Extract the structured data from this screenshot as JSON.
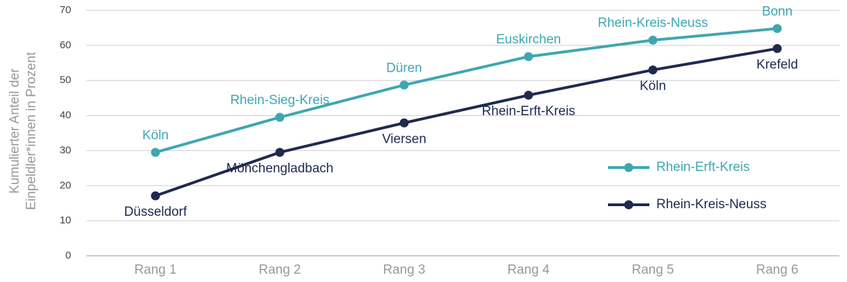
{
  "chart_data": {
    "type": "line",
    "ylabel": [
      "Kumulierter Anteil der",
      "Einpeldler*innen in Prozent"
    ],
    "categories": [
      "Rang 1",
      "Rang 2",
      "Rang 3",
      "Rang 4",
      "Rang 5",
      "Rang 6"
    ],
    "series": [
      {
        "name": "Rhein-Erft-Kreis",
        "color": "#3ea7b1",
        "values": [
          29.5,
          39.5,
          48.7,
          56.8,
          61.5,
          64.8
        ],
        "point_labels": [
          "Köln",
          "Rhein-Sieg-Kreis",
          "Düren",
          "Euskirchen",
          "Rhein-Kreis-Neuss",
          "Bonn"
        ]
      },
      {
        "name": "Rhein-Kreis-Neuss",
        "color": "#1e2a50",
        "values": [
          17.1,
          29.5,
          37.9,
          45.8,
          53,
          59.1
        ],
        "point_labels": [
          "Düsseldorf",
          "Mönchengladbach",
          "Viersen",
          "Rhein-Erft-Kreis",
          "Köln",
          "Krefeld"
        ]
      }
    ],
    "ylim": [
      0,
      70
    ],
    "yticks": [
      0,
      10,
      20,
      30,
      40,
      50,
      60,
      70
    ],
    "grid": true,
    "legend": "right"
  }
}
